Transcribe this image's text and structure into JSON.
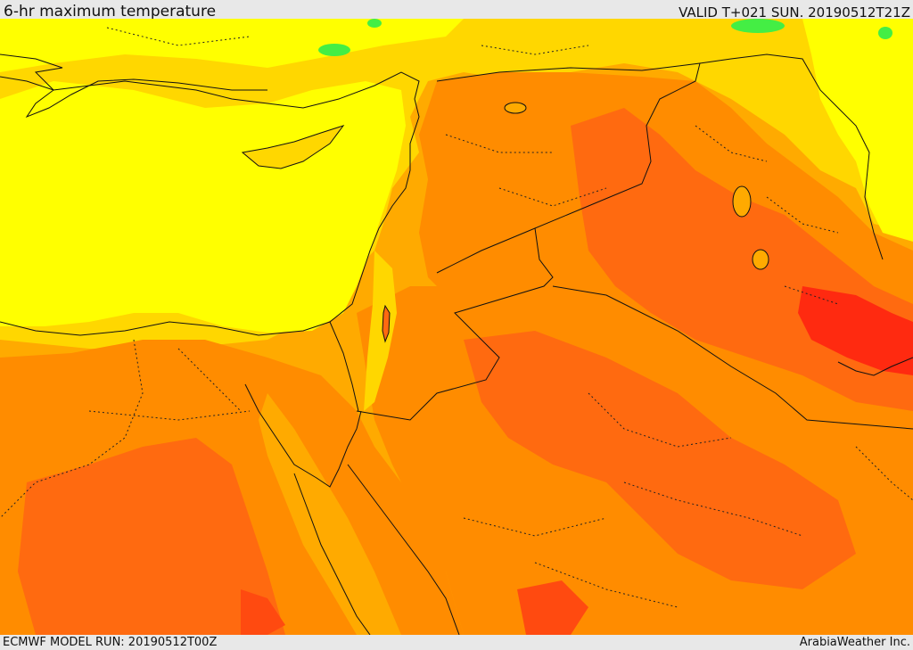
{
  "header": {
    "title": "6-hr maximum temperature",
    "valid_label": "VALID T+021 SUN. 20190512T21Z"
  },
  "footer": {
    "model_run": "ECMWF MODEL RUN: 20190512T00Z",
    "credit": "ArabiaWeather Inc."
  },
  "map": {
    "colors": {
      "sea_yellow": "#ffff00",
      "light_orange": "#ffd700",
      "amber": "#ffaa00",
      "orange": "#ff8c00",
      "dark_orange": "#ff6a10",
      "red_orange": "#ff4a10",
      "red": "#ff2a10",
      "green": "#44ee44",
      "coast_line": "#111111"
    }
  }
}
